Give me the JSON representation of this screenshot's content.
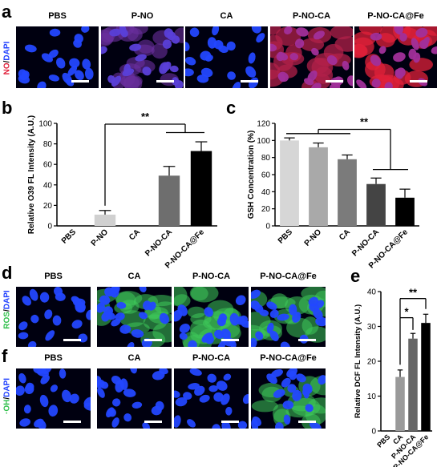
{
  "panel_letters": {
    "a": "a",
    "b": "b",
    "c": "c",
    "d": "d",
    "e": "e",
    "f": "f"
  },
  "row_a": {
    "row_label": {
      "part1": "NO",
      "sep": "/",
      "part2": "DAPI"
    },
    "titles": [
      "PBS",
      "P-NO",
      "CA",
      "P-NO-CA",
      "P-NO-CA@Fe"
    ],
    "colors": {
      "no": "#e0203a",
      "dapi": "#1f3fff"
    }
  },
  "row_d": {
    "row_label": {
      "part1": "ROS",
      "sep": "/",
      "part2": "DAPI"
    },
    "titles": [
      "PBS",
      "CA",
      "P-NO-CA",
      "P-NO-CA@Fe"
    ],
    "colors": {
      "ros": "#2fbf4a",
      "dapi": "#1f3fff"
    }
  },
  "row_f": {
    "row_label": {
      "part1": "·OH",
      "sep": "/",
      "part2": "DAPI"
    },
    "titles": [
      "PBS",
      "CA",
      "P-NO-CA",
      "P-NO-CA@Fe"
    ],
    "colors": {
      "oh": "#2fbf4a",
      "dapi": "#1f3fff"
    }
  },
  "chart_data": [
    {
      "id": "b",
      "type": "bar",
      "ylabel": "Relative O39 FL Intensity (A.U.)",
      "categories": [
        "PBS",
        "P-NO",
        "CA",
        "P-NO-CA",
        "P-NO-CA@Fe"
      ],
      "values": [
        0,
        11,
        0,
        49,
        73
      ],
      "errors": [
        0,
        4,
        0,
        9,
        9
      ],
      "ylim": [
        0,
        100
      ],
      "yticks": [
        0,
        20,
        40,
        60,
        80,
        100
      ],
      "bar_colors": [
        "#d0d0d0",
        "#d0d0d0",
        "#d0d0d0",
        "#6e6e6e",
        "#000000"
      ],
      "significance": [
        "**"
      ]
    },
    {
      "id": "c",
      "type": "bar",
      "ylabel": "GSH Concentration (%)",
      "categories": [
        "PBS",
        "P-NO",
        "CA",
        "P-NO-CA",
        "P-NO-CA@Fe"
      ],
      "values": [
        100,
        92,
        78,
        49,
        33
      ],
      "errors": [
        3,
        5,
        5,
        7,
        10
      ],
      "ylim": [
        0,
        120
      ],
      "yticks": [
        0,
        20,
        40,
        60,
        80,
        100,
        120
      ],
      "bar_colors": [
        "#d6d6d6",
        "#a9a9a9",
        "#7b7b7b",
        "#444444",
        "#000000"
      ],
      "significance": [
        "**"
      ]
    },
    {
      "id": "e",
      "type": "bar",
      "ylabel": "Relative DCF FL Intensity (A.U.)",
      "categories": [
        "PBS",
        "CA",
        "P-NO-CA",
        "P-NO-CA@Fe"
      ],
      "values": [
        0,
        15.5,
        26.5,
        31
      ],
      "errors": [
        0,
        2,
        1.5,
        2.5
      ],
      "ylim": [
        0,
        40
      ],
      "yticks": [
        0,
        10,
        20,
        30,
        40
      ],
      "bar_colors": [
        "#d0d0d0",
        "#9a9a9a",
        "#666666",
        "#000000"
      ],
      "significance": [
        "*",
        "**"
      ]
    }
  ]
}
